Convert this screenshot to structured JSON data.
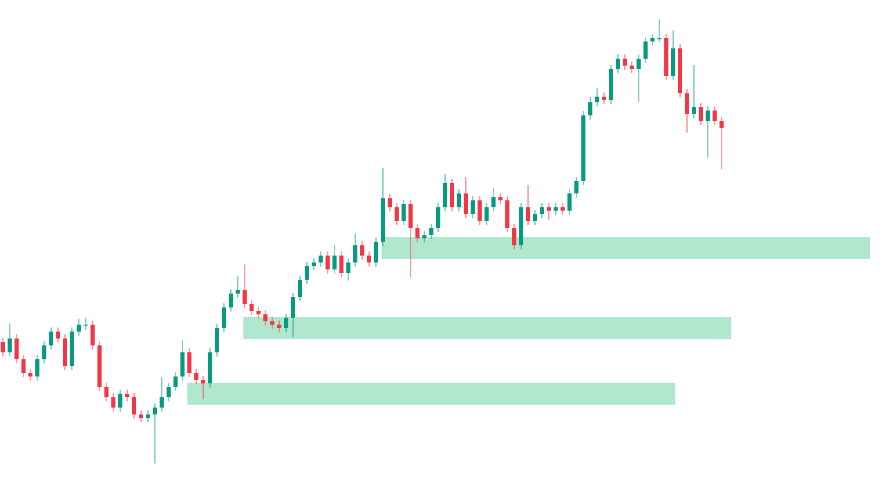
{
  "chart_data": {
    "type": "candlestick",
    "open": [
      223,
      208,
      228,
      198,
      178,
      173,
      198,
      218,
      238,
      228,
      188,
      238,
      248,
      248,
      218,
      158,
      143,
      128,
      148,
      143,
      118,
      113,
      118,
      128,
      143,
      158,
      173,
      208,
      178,
      168,
      163,
      208,
      243,
      273,
      293,
      298,
      278,
      268,
      263,
      253,
      248,
      243,
      258,
      288,
      313,
      333,
      338,
      348,
      328,
      348,
      323,
      338,
      363,
      348,
      338,
      368,
      431,
      418,
      398,
      423,
      388,
      373,
      378,
      388,
      418,
      453,
      418,
      438,
      408,
      428,
      398,
      418,
      433,
      428,
      388,
      363,
      418,
      398,
      408,
      418,
      413,
      418,
      413,
      438,
      456,
      551,
      570,
      578,
      573,
      618,
      633,
      623,
      618,
      633,
      658,
      663,
      663,
      608,
      648,
      583,
      553,
      563,
      543,
      558,
      543
    ],
    "high": [
      229,
      250,
      234,
      204,
      184,
      204,
      224,
      244,
      244,
      234,
      244,
      256,
      258,
      254,
      224,
      164,
      149,
      154,
      154,
      149,
      124,
      124,
      134,
      172,
      164,
      179,
      226,
      214,
      184,
      174,
      214,
      249,
      279,
      299,
      318,
      335,
      284,
      274,
      269,
      259,
      254,
      264,
      294,
      319,
      339,
      344,
      354,
      354,
      364,
      354,
      344,
      380,
      369,
      354,
      374,
      475,
      437,
      424,
      429,
      429,
      394,
      384,
      394,
      424,
      466,
      459,
      444,
      462,
      434,
      434,
      424,
      446,
      439,
      434,
      394,
      424,
      450,
      414,
      424,
      424,
      424,
      424,
      444,
      462,
      557,
      578,
      590,
      584,
      624,
      640,
      639,
      629,
      639,
      664,
      669,
      690,
      669,
      674,
      654,
      589,
      624,
      569,
      564,
      564,
      549
    ],
    "low": [
      202,
      202,
      192,
      172,
      167,
      167,
      192,
      212,
      222,
      182,
      182,
      232,
      240,
      212,
      152,
      137,
      122,
      122,
      137,
      112,
      107,
      107,
      47,
      122,
      137,
      152,
      167,
      172,
      162,
      140,
      157,
      202,
      237,
      267,
      287,
      272,
      262,
      257,
      247,
      242,
      237,
      237,
      230,
      282,
      307,
      327,
      332,
      322,
      322,
      317,
      312,
      332,
      342,
      332,
      332,
      362,
      412,
      392,
      392,
      316,
      367,
      367,
      372,
      382,
      412,
      412,
      412,
      402,
      402,
      392,
      392,
      412,
      422,
      382,
      357,
      357,
      392,
      392,
      402,
      400,
      407,
      407,
      407,
      432,
      450,
      545,
      564,
      567,
      567,
      612,
      617,
      612,
      570,
      627,
      652,
      657,
      602,
      602,
      577,
      526,
      547,
      537,
      490,
      537,
      473
    ],
    "close": [
      208,
      228,
      198,
      178,
      173,
      198,
      218,
      238,
      228,
      188,
      238,
      248,
      248,
      218,
      158,
      143,
      128,
      148,
      143,
      118,
      113,
      118,
      128,
      143,
      158,
      173,
      208,
      178,
      168,
      163,
      208,
      243,
      273,
      293,
      298,
      278,
      268,
      263,
      253,
      248,
      243,
      258,
      288,
      313,
      333,
      338,
      348,
      328,
      348,
      323,
      338,
      363,
      348,
      338,
      368,
      431,
      418,
      398,
      423,
      388,
      373,
      378,
      388,
      418,
      453,
      418,
      438,
      408,
      428,
      398,
      418,
      433,
      428,
      388,
      363,
      418,
      398,
      408,
      418,
      413,
      418,
      413,
      438,
      456,
      551,
      570,
      578,
      573,
      618,
      633,
      623,
      618,
      633,
      658,
      663,
      663,
      608,
      648,
      583,
      553,
      563,
      543,
      558,
      543,
      533
    ],
    "up_color": "#089981",
    "down_color": "#f23645",
    "zones": [
      {
        "start": 54.8,
        "end": 125.5,
        "low": 343,
        "high": 375
      },
      {
        "start": 34.8,
        "end": 105.4,
        "low": 227,
        "high": 259
      },
      {
        "start": 26.7,
        "end": 97.3,
        "low": 132,
        "high": 164
      }
    ],
    "zone_color": "#a9e4c8",
    "xlim": [
      -0.4,
      127.5
    ],
    "ylim": [
      0,
      718
    ]
  }
}
